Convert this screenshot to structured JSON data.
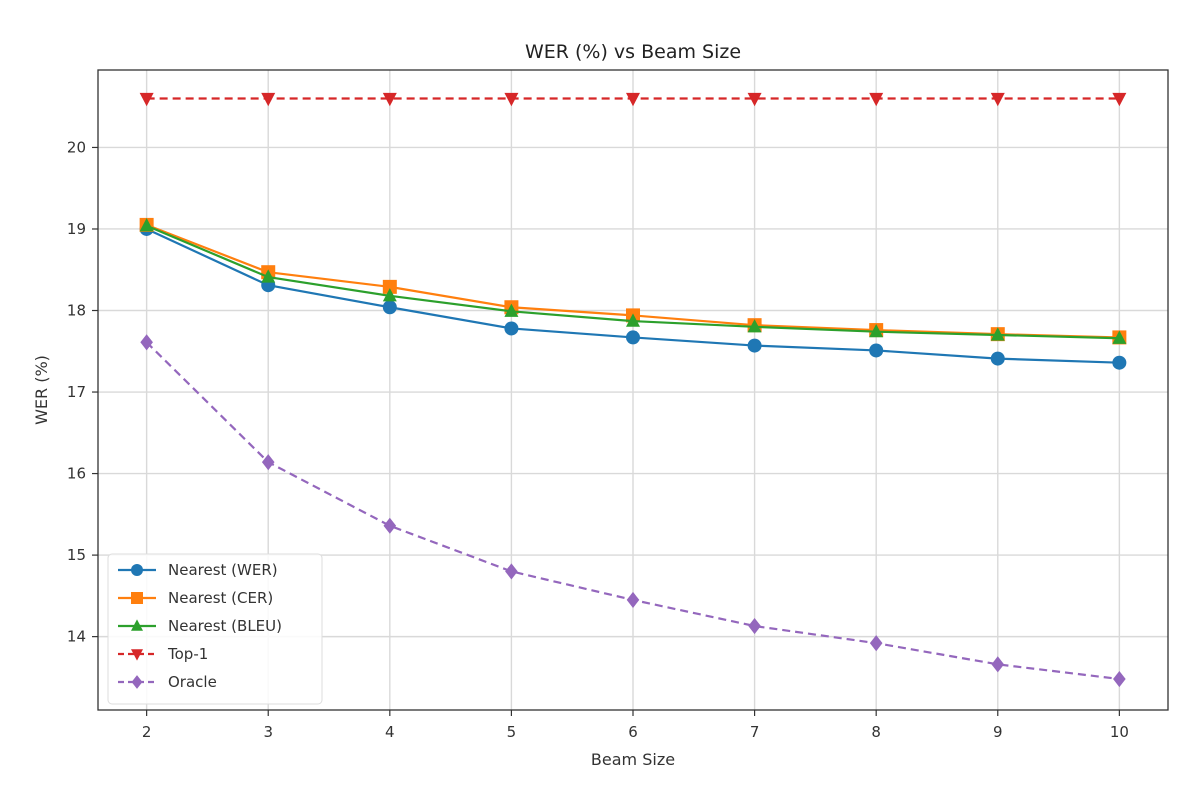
{
  "chart_data": {
    "type": "line",
    "title": "WER (%) vs Beam Size",
    "xlabel": "Beam Size",
    "ylabel": "WER (%)",
    "x": [
      2,
      3,
      4,
      5,
      6,
      7,
      8,
      9,
      10
    ],
    "xlim": [
      1.6,
      10.4
    ],
    "ylim": [
      13.1,
      20.95
    ],
    "yticks": [
      14,
      15,
      16,
      17,
      18,
      19,
      20
    ],
    "grid": true,
    "legend_position": "lower-left",
    "series": [
      {
        "name": "Nearest (WER)",
        "color": "#1f77b4",
        "marker": "circle",
        "dashed": false,
        "values": [
          19.0,
          18.31,
          18.04,
          17.78,
          17.67,
          17.57,
          17.51,
          17.41,
          17.36
        ]
      },
      {
        "name": "Nearest (CER)",
        "color": "#ff7f0e",
        "marker": "square",
        "dashed": false,
        "values": [
          19.05,
          18.47,
          18.29,
          18.04,
          17.94,
          17.82,
          17.76,
          17.71,
          17.67
        ]
      },
      {
        "name": "Nearest (BLEU)",
        "color": "#2ca02c",
        "marker": "triangle-up",
        "dashed": false,
        "values": [
          19.04,
          18.41,
          18.18,
          17.99,
          17.87,
          17.8,
          17.74,
          17.7,
          17.66
        ]
      },
      {
        "name": "Top-1",
        "color": "#d62728",
        "marker": "triangle-down",
        "dashed": true,
        "values": [
          20.6,
          20.6,
          20.6,
          20.6,
          20.6,
          20.6,
          20.6,
          20.6,
          20.6
        ]
      },
      {
        "name": "Oracle",
        "color": "#9467bd",
        "marker": "diamond",
        "dashed": true,
        "values": [
          17.61,
          16.14,
          15.36,
          14.8,
          14.45,
          14.13,
          13.92,
          13.66,
          13.48
        ]
      }
    ]
  }
}
